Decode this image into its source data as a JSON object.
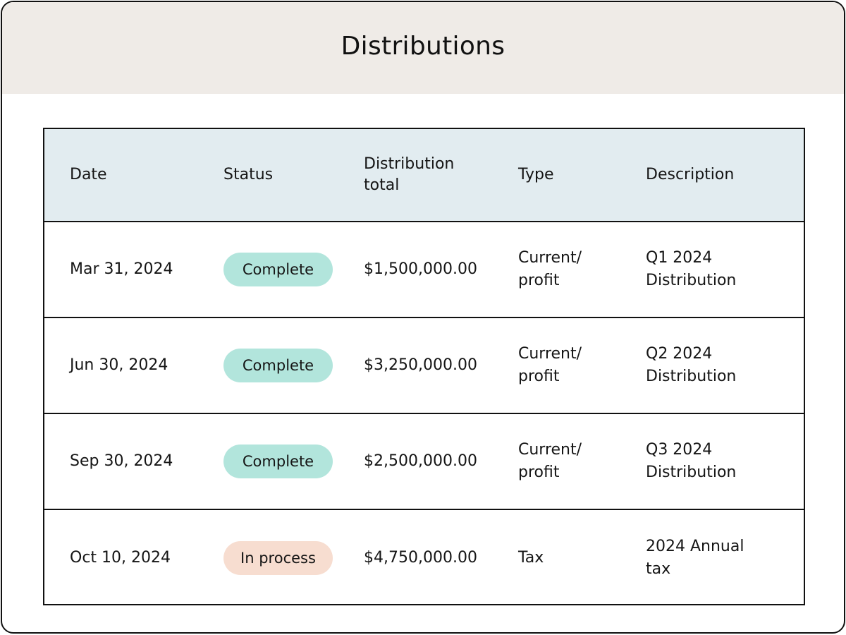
{
  "header": {
    "title": "Distributions"
  },
  "table": {
    "columns": {
      "date": "Date",
      "status": "Status",
      "total_line1": "Distribution",
      "total_line2": "total",
      "type": "Type",
      "description": "Description"
    },
    "rows": [
      {
        "date": "Mar 31, 2024",
        "status": "Complete",
        "total": "$1,500,000.00",
        "type_line1": "Current/",
        "type_line2": "profit",
        "desc_line1": "Q1 2024",
        "desc_line2": "Distribution"
      },
      {
        "date": "Jun 30, 2024",
        "status": "Complete",
        "total": "$3,250,000.00",
        "type_line1": "Current/",
        "type_line2": "profit",
        "desc_line1": "Q2 2024",
        "desc_line2": "Distribution"
      },
      {
        "date": "Sep 30, 2024",
        "status": "Complete",
        "total": "$2,500,000.00",
        "type_line1": "Current/",
        "type_line2": "profit",
        "desc_line1": "Q3 2024",
        "desc_line2": "Distribution"
      },
      {
        "date": "Oct 10, 2024",
        "status": "In process",
        "total": "$4,750,000.00",
        "type_line1": "Tax",
        "type_line2": "",
        "desc_line1": "2024 Annual",
        "desc_line2": "tax"
      }
    ]
  },
  "colors": {
    "header_bg": "#efebe7",
    "table_header_bg": "#e2ecf0",
    "status_complete": "#b2e5dc",
    "status_in_process": "#f7ddd0"
  }
}
